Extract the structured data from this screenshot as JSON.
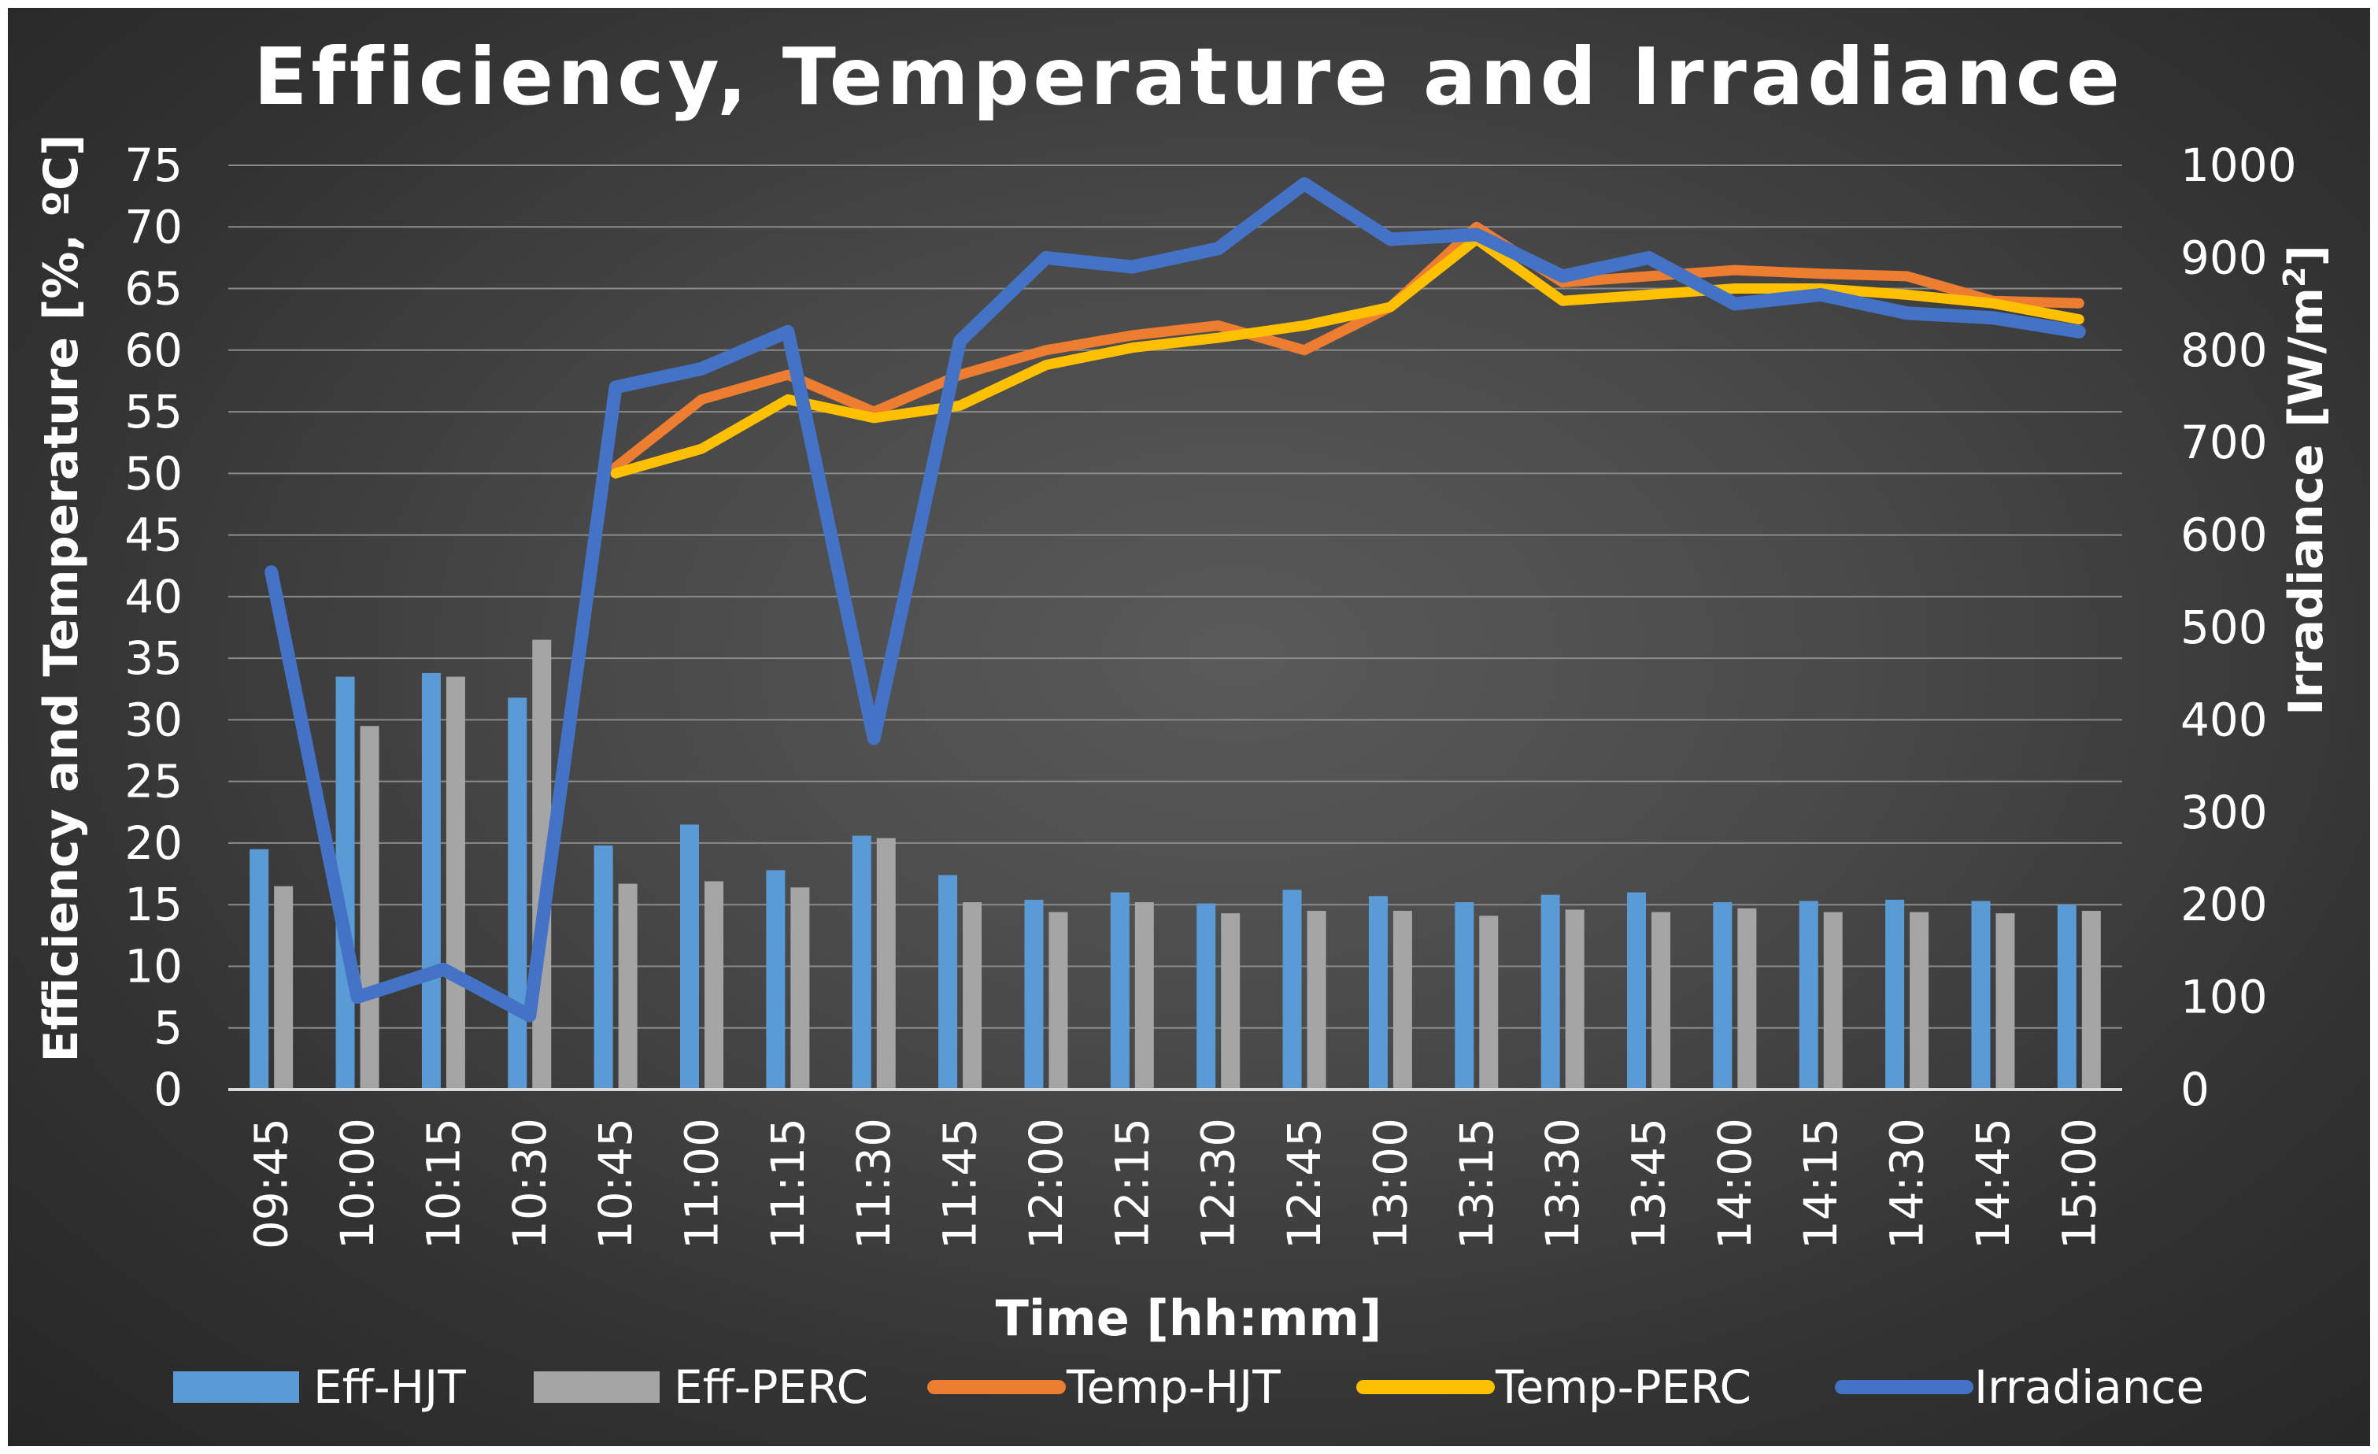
{
  "chart_data": {
    "type": "bar",
    "title": "Efficiency, Temperature and Irradiance",
    "xlabel": "Time [hh:mm]",
    "ylabel_left": "Efficiency and Temperature [%, ºC]",
    "ylabel_right_prefix": "Irradiance [W/m",
    "ylabel_right_sup": "2",
    "ylabel_right_suffix": "]",
    "ylim_left": [
      0,
      75
    ],
    "ylim_right": [
      0,
      1000
    ],
    "yticks_left": [
      "0",
      "5",
      "10",
      "15",
      "20",
      "25",
      "30",
      "35",
      "40",
      "45",
      "50",
      "55",
      "60",
      "65",
      "70",
      "75"
    ],
    "yticks_right": [
      "0",
      "100",
      "200",
      "300",
      "400",
      "500",
      "600",
      "700",
      "800",
      "900",
      "1000"
    ],
    "grid": true,
    "legend_position": "bottom",
    "categories": [
      "09:45",
      "10:00",
      "10:15",
      "10:30",
      "10:45",
      "11:00",
      "11:15",
      "11:30",
      "11:45",
      "12:00",
      "12:15",
      "12:30",
      "12:45",
      "13:00",
      "13:15",
      "13:30",
      "13:45",
      "14:00",
      "14:15",
      "14:30",
      "14:45",
      "15:00"
    ],
    "series": [
      {
        "name": "Eff-HJT",
        "kind": "bar",
        "axis": "left",
        "color": "#5b9bd5",
        "values": [
          19.5,
          33.5,
          33.8,
          31.8,
          19.8,
          21.5,
          17.8,
          20.6,
          17.4,
          15.4,
          16.0,
          15.1,
          16.2,
          15.7,
          15.2,
          15.8,
          16.0,
          15.2,
          15.3,
          15.4,
          15.3,
          15.0
        ]
      },
      {
        "name": "Eff-PERC",
        "kind": "bar",
        "axis": "left",
        "color": "#a5a5a5",
        "values": [
          16.5,
          29.5,
          33.5,
          36.5,
          16.7,
          16.9,
          16.4,
          20.4,
          15.2,
          14.4,
          15.2,
          14.3,
          14.5,
          14.5,
          14.1,
          14.6,
          14.4,
          14.7,
          14.4,
          14.4,
          14.3,
          14.5
        ]
      },
      {
        "name": "Temp-HJT",
        "kind": "line",
        "axis": "left",
        "color": "#ed7d31",
        "values": [
          null,
          null,
          null,
          null,
          50.5,
          56.0,
          58.0,
          55.0,
          58.0,
          60.0,
          61.2,
          62.0,
          60.0,
          63.5,
          70.0,
          65.5,
          66.0,
          66.5,
          66.2,
          66.0,
          64.0,
          63.8
        ]
      },
      {
        "name": "Temp-PERC",
        "kind": "line",
        "axis": "left",
        "color": "#ffc000",
        "values": [
          null,
          null,
          null,
          null,
          50.0,
          52.0,
          56.0,
          54.5,
          55.5,
          58.8,
          60.2,
          61.0,
          62.0,
          63.5,
          69.0,
          64.0,
          64.5,
          65.0,
          65.0,
          64.5,
          63.8,
          62.5
        ]
      },
      {
        "name": "Irradiance",
        "kind": "line",
        "axis": "right",
        "color": "#4472c4",
        "values": [
          560,
          100,
          130,
          80,
          760,
          780,
          820,
          380,
          810,
          900,
          890,
          910,
          980,
          920,
          925,
          880,
          900,
          850,
          860,
          840,
          835,
          820
        ]
      }
    ]
  }
}
